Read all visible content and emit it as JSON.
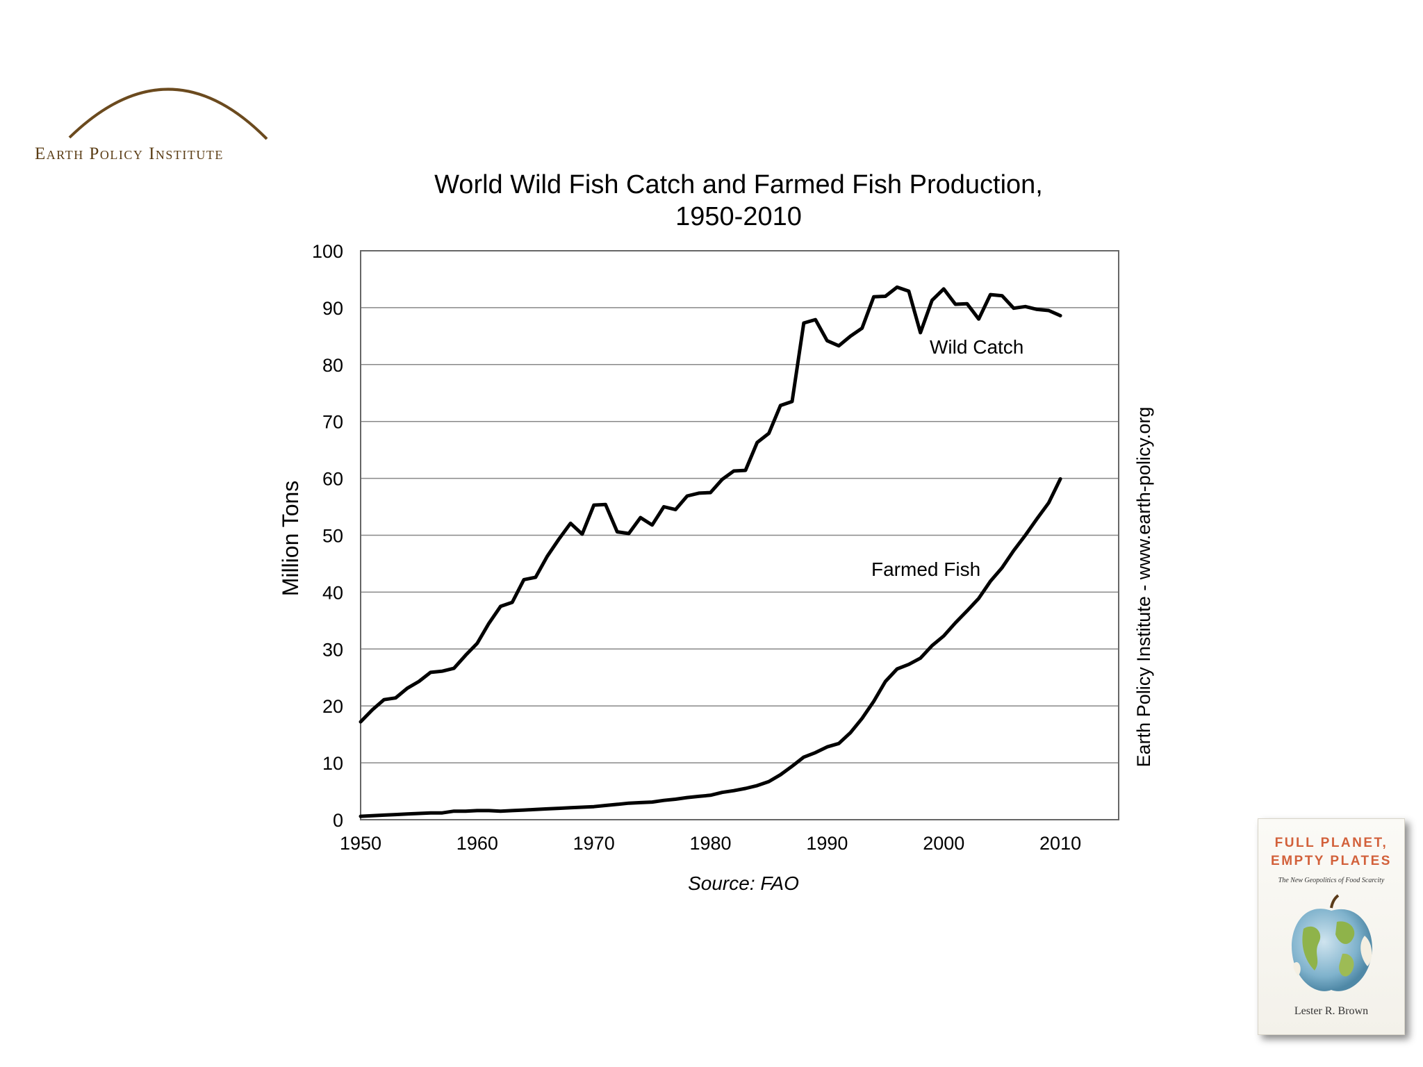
{
  "logo": {
    "text": "Earth Policy Institute"
  },
  "book": {
    "title_line1": "FULL PLANET,",
    "title_line2": "EMPTY PLATES",
    "subtitle": "The New Geopolitics of Food Scarcity",
    "author": "Lester R. Brown"
  },
  "side_caption": "Earth Policy Institute - www.earth-policy.org",
  "source": "Source: FAO",
  "chart_data": {
    "type": "line",
    "title_line1": "World Wild Fish Catch and Farmed Fish Production,",
    "title_line2": "1950-2010",
    "xlabel": "",
    "ylabel": "Million Tons",
    "xlim": [
      1950,
      2015
    ],
    "ylim": [
      0,
      100
    ],
    "x_ticks": [
      1950,
      1960,
      1970,
      1980,
      1990,
      2000,
      2010
    ],
    "y_ticks": [
      0,
      10,
      20,
      30,
      40,
      50,
      60,
      70,
      80,
      90,
      100
    ],
    "grid": "horizontal",
    "line_color": "#000000",
    "x": [
      1950,
      1951,
      1952,
      1953,
      1954,
      1955,
      1956,
      1957,
      1958,
      1959,
      1960,
      1961,
      1962,
      1963,
      1964,
      1965,
      1966,
      1967,
      1968,
      1969,
      1970,
      1971,
      1972,
      1973,
      1974,
      1975,
      1976,
      1977,
      1978,
      1979,
      1980,
      1981,
      1982,
      1983,
      1984,
      1985,
      1986,
      1987,
      1988,
      1989,
      1990,
      1991,
      1992,
      1993,
      1994,
      1995,
      1996,
      1997,
      1998,
      1999,
      2000,
      2001,
      2002,
      2003,
      2004,
      2005,
      2006,
      2007,
      2008,
      2009,
      2010
    ],
    "series": [
      {
        "name": "Wild Catch",
        "values": [
          17.2,
          19.3,
          21.1,
          21.4,
          23.1,
          24.3,
          25.9,
          26.1,
          26.6,
          28.9,
          31.0,
          34.5,
          37.5,
          38.2,
          42.2,
          42.6,
          46.3,
          49.3,
          52.1,
          50.2,
          55.3,
          55.4,
          50.6,
          50.3,
          53.1,
          51.8,
          55.0,
          54.5,
          56.9,
          57.4,
          57.5,
          59.8,
          61.3,
          61.4,
          66.3,
          67.9,
          72.8,
          73.5,
          87.3,
          87.9,
          84.2,
          83.3,
          85.0,
          86.4,
          91.9,
          92.0,
          93.6,
          92.9,
          85.6,
          91.3,
          93.3,
          90.6,
          90.7,
          88.0,
          92.3,
          92.1,
          89.9,
          90.2,
          89.7,
          89.5,
          88.6
        ]
      },
      {
        "name": "Farmed Fish",
        "values": [
          0.6,
          0.7,
          0.8,
          0.9,
          1.0,
          1.1,
          1.2,
          1.2,
          1.5,
          1.5,
          1.6,
          1.6,
          1.5,
          1.6,
          1.7,
          1.8,
          1.9,
          2.0,
          2.1,
          2.2,
          2.3,
          2.5,
          2.7,
          2.9,
          3.0,
          3.1,
          3.4,
          3.6,
          3.9,
          4.1,
          4.3,
          4.8,
          5.1,
          5.5,
          6.0,
          6.7,
          7.9,
          9.4,
          11.0,
          11.8,
          12.8,
          13.4,
          15.3,
          17.8,
          20.8,
          24.3,
          26.5,
          27.3,
          28.4,
          30.6,
          32.3,
          34.6,
          36.7,
          38.9,
          41.9,
          44.3,
          47.3,
          50.0,
          52.9,
          55.7,
          59.9
        ]
      }
    ],
    "series_labels": [
      "Wild Catch",
      "Farmed Fish"
    ]
  }
}
